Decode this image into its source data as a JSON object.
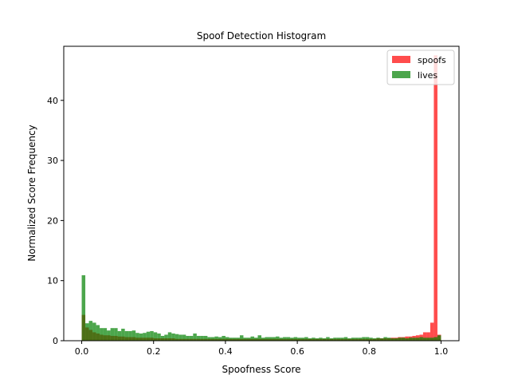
{
  "chart_data": {
    "type": "bar",
    "title": "Spoof Detection Histogram",
    "xlabel": "Spoofness Score",
    "ylabel": "Normalized Score Frequency",
    "xlim": [
      -0.05,
      1.05
    ],
    "ylim": [
      0,
      49
    ],
    "xticks": [
      0.0,
      0.2,
      0.4,
      0.6,
      0.8,
      1.0
    ],
    "xtick_labels": [
      "0.0",
      "0.2",
      "0.4",
      "0.6",
      "0.8",
      "1.0"
    ],
    "yticks": [
      0,
      10,
      20,
      30,
      40
    ],
    "ytick_labels": [
      "0",
      "10",
      "20",
      "30",
      "40"
    ],
    "bin_width": 0.01,
    "bin_start": 0.0,
    "legend_position": "top-right",
    "series": [
      {
        "name": "spoofs",
        "color": "#ff0000",
        "opacity": 0.7,
        "values": [
          4.3,
          2.2,
          1.8,
          1.4,
          1.2,
          1.0,
          0.9,
          0.9,
          0.8,
          0.8,
          0.7,
          0.7,
          0.6,
          0.6,
          0.6,
          0.5,
          0.5,
          0.5,
          0.5,
          0.5,
          0.4,
          0.4,
          0.4,
          0.4,
          0.4,
          0.4,
          0.3,
          0.3,
          0.3,
          0.3,
          0.3,
          0.3,
          0.3,
          0.3,
          0.3,
          0.3,
          0.3,
          0.3,
          0.3,
          0.3,
          0.3,
          0.3,
          0.3,
          0.3,
          0.3,
          0.3,
          0.3,
          0.3,
          0.3,
          0.3,
          0.3,
          0.3,
          0.3,
          0.3,
          0.3,
          0.3,
          0.3,
          0.3,
          0.3,
          0.3,
          0.3,
          0.3,
          0.3,
          0.3,
          0.3,
          0.3,
          0.3,
          0.3,
          0.3,
          0.3,
          0.3,
          0.3,
          0.3,
          0.3,
          0.3,
          0.3,
          0.3,
          0.3,
          0.3,
          0.3,
          0.3,
          0.3,
          0.4,
          0.4,
          0.4,
          0.4,
          0.5,
          0.5,
          0.6,
          0.6,
          0.7,
          0.7,
          0.8,
          0.9,
          1.0,
          1.4,
          1.4,
          3.0,
          47.5,
          1.0
        ]
      },
      {
        "name": "lives",
        "color": "#008000",
        "opacity": 0.7,
        "values": [
          10.9,
          2.9,
          3.3,
          3.0,
          2.6,
          2.1,
          2.1,
          1.7,
          2.1,
          2.1,
          1.6,
          2.0,
          1.6,
          1.6,
          1.7,
          1.3,
          1.2,
          1.3,
          1.5,
          1.6,
          1.4,
          1.2,
          0.8,
          1.0,
          1.4,
          1.2,
          1.1,
          1.0,
          1.0,
          0.8,
          0.8,
          1.2,
          0.8,
          0.8,
          0.8,
          0.6,
          0.6,
          0.7,
          0.6,
          0.8,
          0.6,
          0.5,
          0.5,
          0.5,
          0.9,
          0.5,
          0.5,
          0.7,
          0.5,
          0.9,
          0.5,
          0.6,
          0.6,
          0.6,
          0.7,
          0.5,
          0.6,
          0.6,
          0.5,
          0.6,
          0.5,
          0.5,
          0.6,
          0.4,
          0.5,
          0.4,
          0.5,
          0.4,
          0.6,
          0.4,
          0.5,
          0.5,
          0.5,
          0.6,
          0.4,
          0.5,
          0.5,
          0.5,
          0.6,
          0.6,
          0.5,
          0.4,
          0.5,
          0.4,
          0.6,
          0.5,
          0.4,
          0.4,
          0.5,
          0.5,
          0.4,
          0.5,
          0.5,
          0.5,
          0.6,
          0.5,
          0.5,
          0.5,
          0.6,
          0.9
        ]
      }
    ]
  }
}
